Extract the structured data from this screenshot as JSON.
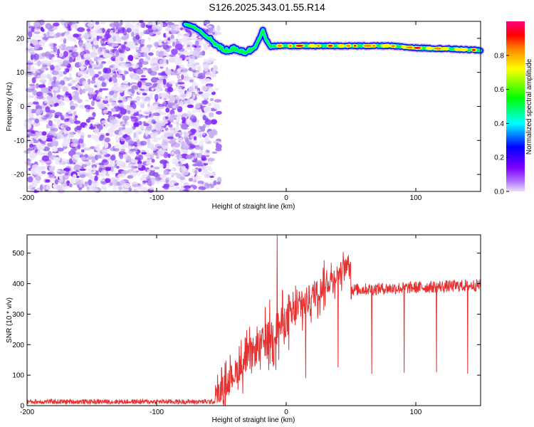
{
  "title": "S126.2025.343.01.55.R14",
  "chart_data": [
    {
      "type": "heatmap",
      "name": "spectrogram",
      "xlabel": "Height of straight line (km)",
      "ylabel": "Frequency (Hz)",
      "xlim": [
        -200,
        150
      ],
      "ylim": [
        -25,
        25
      ],
      "xticks": [
        -200,
        -100,
        0,
        100
      ],
      "yticks": [
        -20,
        -10,
        0,
        10,
        20
      ],
      "colorbar": {
        "label": "Normalized spectral amplitude",
        "range": [
          0,
          1
        ],
        "ticks": [
          0.0,
          0.2,
          0.4,
          0.6,
          0.8
        ],
        "tick_labels": [
          "0.0",
          "0.2",
          "0.4",
          "0.6",
          "0.8"
        ],
        "colormap": [
          "#e8e0f8",
          "#7d00ff",
          "#0000ff",
          "#00ffff",
          "#00ff00",
          "#ffff00",
          "#ff8000",
          "#ff0000",
          "#ff0080"
        ]
      },
      "noise_region": {
        "x": [
          -200,
          -58
        ],
        "y": [
          -25,
          25
        ]
      },
      "signal_track": {
        "x": [
          -78,
          -72,
          -66,
          -62,
          -58,
          -55,
          -52,
          -48,
          -44,
          -40,
          -36,
          -32,
          -28,
          -24,
          -20,
          -18,
          -16,
          -12,
          -8,
          0,
          20,
          40,
          60,
          80,
          100,
          120,
          150
        ],
        "freq": [
          24,
          23.5,
          22,
          20.5,
          19.5,
          18.5,
          17.5,
          16.5,
          16.5,
          17,
          16.5,
          16,
          16.5,
          17.5,
          20.5,
          22.5,
          20,
          17.5,
          17.8,
          17.8,
          17.8,
          17.8,
          17.8,
          17.8,
          17.2,
          17.0,
          16.5
        ]
      }
    },
    {
      "type": "line",
      "name": "snr",
      "xlabel": "Height of straight line (km)",
      "ylabel": "SNR (10 * v/v)",
      "xlim": [
        -200,
        150
      ],
      "ylim": [
        0,
        560
      ],
      "xticks": [
        -200,
        -100,
        0,
        100
      ],
      "yticks": [
        0,
        100,
        200,
        300,
        400,
        500
      ],
      "color": "#e83030",
      "segments": [
        {
          "x": [
            -200,
            -55
          ],
          "y": [
            13,
            13
          ],
          "noise": 8
        },
        {
          "x": [
            -55,
            50
          ],
          "y": [
            20,
            470
          ],
          "noise": 60
        },
        {
          "x": [
            50,
            150
          ],
          "y": [
            380,
            395
          ],
          "noise": 20
        }
      ],
      "spikes": [
        {
          "x": -7,
          "y": 560
        },
        {
          "x": 15,
          "y": 90
        },
        {
          "x": 40,
          "y": 125
        },
        {
          "x": 66,
          "y": 105
        },
        {
          "x": 91,
          "y": 108
        },
        {
          "x": 116,
          "y": 110
        },
        {
          "x": 140,
          "y": 105
        }
      ]
    }
  ]
}
